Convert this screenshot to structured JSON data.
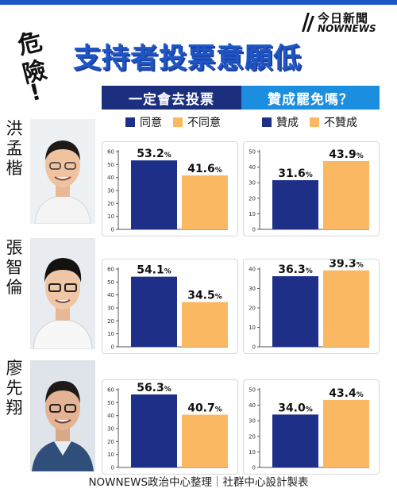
{
  "brand": {
    "logo_line1": "今日新聞",
    "logo_line2": "NOWNEWS"
  },
  "danger_label": [
    "危",
    "險",
    "!"
  ],
  "title": "支持者投票意願低",
  "headers": {
    "vote": "一定會去投票",
    "recall": "贊成罷免嗎？"
  },
  "legend_vote": {
    "agree": "同意",
    "disagree": "不同意"
  },
  "legend_recall": {
    "agree": "贊成",
    "disagree": "不贊成"
  },
  "colors": {
    "navy": "#1d2f87",
    "orange": "#fbb862",
    "blue": "#1e56c6",
    "sky": "#1b8ee0"
  },
  "people": [
    {
      "name_chars": [
        "洪",
        "孟",
        "楷"
      ],
      "vote_labels": [
        "53.2",
        "41.6"
      ],
      "recall_labels": [
        "31.6",
        "43.9"
      ]
    },
    {
      "name_chars": [
        "張",
        "智",
        "倫"
      ],
      "vote_labels": [
        "54.1",
        "34.5"
      ],
      "recall_labels": [
        "36.3",
        "39.3"
      ]
    },
    {
      "name_chars": [
        "廖",
        "先",
        "翔"
      ],
      "vote_labels": [
        "56.3",
        "40.7"
      ],
      "recall_labels": [
        "34.0",
        "43.4"
      ]
    }
  ],
  "footer": "NOWNEWS政治中心整理｜社群中心設計製表",
  "chart_data": [
    {
      "type": "bar",
      "title": "洪孟楷 一定會去投票",
      "categories": [
        "同意",
        "不同意"
      ],
      "values": [
        53.2,
        41.6
      ],
      "unit": "%",
      "ylim": [
        0,
        60
      ],
      "yticks": [
        0,
        10,
        20,
        30,
        40,
        50,
        60
      ]
    },
    {
      "type": "bar",
      "title": "洪孟楷 贊成罷免嗎？",
      "categories": [
        "贊成",
        "不贊成"
      ],
      "values": [
        31.6,
        43.9
      ],
      "unit": "%",
      "ylim": [
        0,
        50
      ],
      "yticks": [
        0,
        10,
        20,
        30,
        40,
        50
      ]
    },
    {
      "type": "bar",
      "title": "張智倫 一定會去投票",
      "categories": [
        "同意",
        "不同意"
      ],
      "values": [
        54.1,
        34.5
      ],
      "unit": "%",
      "ylim": [
        0,
        60
      ],
      "yticks": [
        0,
        10,
        20,
        30,
        40,
        50,
        60
      ]
    },
    {
      "type": "bar",
      "title": "張智倫 贊成罷免嗎？",
      "categories": [
        "贊成",
        "不贊成"
      ],
      "values": [
        36.3,
        39.3
      ],
      "unit": "%",
      "ylim": [
        0,
        40
      ],
      "yticks": [
        0,
        10,
        20,
        30,
        40
      ]
    },
    {
      "type": "bar",
      "title": "廖先翔 一定會去投票",
      "categories": [
        "同意",
        "不同意"
      ],
      "values": [
        56.3,
        40.7
      ],
      "unit": "%",
      "ylim": [
        0,
        60
      ],
      "yticks": [
        0,
        10,
        20,
        30,
        40,
        50,
        60
      ]
    },
    {
      "type": "bar",
      "title": "廖先翔 贊成罷免嗎？",
      "categories": [
        "贊成",
        "不贊成"
      ],
      "values": [
        34.0,
        43.4
      ],
      "unit": "%",
      "ylim": [
        0,
        50
      ],
      "yticks": [
        0,
        10,
        20,
        30,
        40,
        50
      ]
    }
  ]
}
